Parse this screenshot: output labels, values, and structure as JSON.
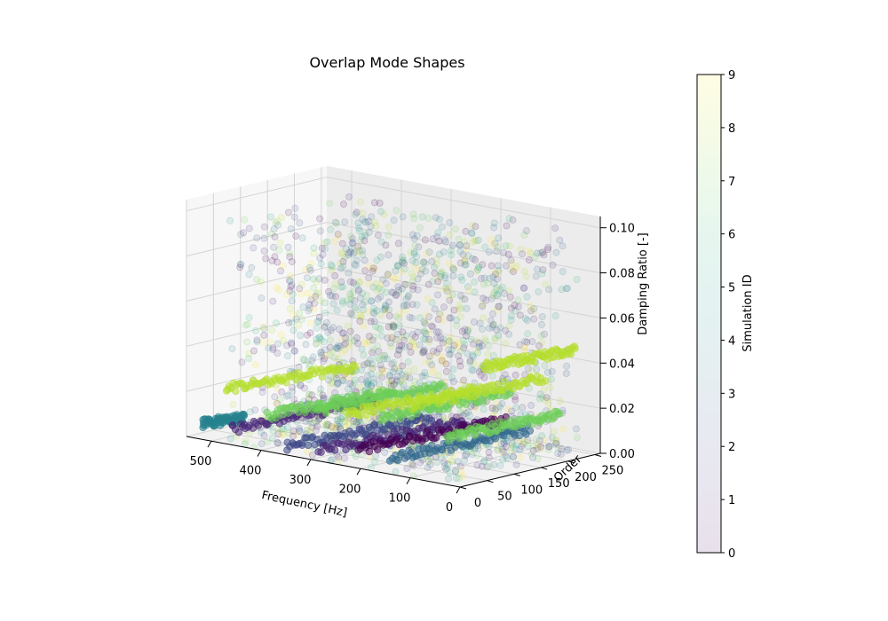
{
  "chart_data": {
    "type": "scatter",
    "projection": "3d",
    "title": "Overlap Mode Shapes",
    "xlabel": "Frequency [Hz]",
    "ylabel": "Order",
    "zlabel": "Damping Ratio [-]",
    "xlim": [
      0,
      550
    ],
    "ylim": [
      0,
      260
    ],
    "zlim": [
      0,
      0.105
    ],
    "x_ticks": [
      "0",
      "100",
      "200",
      "300",
      "400",
      "500"
    ],
    "y_ticks": [
      "0",
      "50",
      "100",
      "150",
      "200",
      "250"
    ],
    "z_ticks": [
      "0.00",
      "0.02",
      "0.04",
      "0.06",
      "0.08",
      "0.10"
    ],
    "x_tick_values": [
      0,
      100,
      200,
      300,
      400,
      500
    ],
    "y_tick_values": [
      0,
      50,
      100,
      150,
      200,
      250
    ],
    "z_tick_values": [
      0,
      0.02,
      0.04,
      0.06,
      0.08,
      0.1
    ],
    "grid": true,
    "colormap": "viridis",
    "colorbar": {
      "label": "Simulation ID",
      "min": 0,
      "max": 9,
      "ticks": [
        "0",
        "1",
        "2",
        "3",
        "4",
        "5",
        "6",
        "7",
        "8",
        "9"
      ],
      "tick_values": [
        0,
        1,
        2,
        3,
        4,
        5,
        6,
        7,
        8,
        9
      ],
      "colors": [
        "#440154",
        "#482878",
        "#3e4989",
        "#31688e",
        "#26828e",
        "#1f9e89",
        "#35b779",
        "#6ece58",
        "#b5de2b",
        "#fde725"
      ]
    },
    "marker_alpha": 0.12,
    "stable_tracks": [
      {
        "x0": 540,
        "x1": 520,
        "y0": 20,
        "y1": 80,
        "z": 0.005,
        "sim": 4
      },
      {
        "x0": 520,
        "x1": 470,
        "y0": 45,
        "y1": 240,
        "z": 0.02,
        "sim": 8
      },
      {
        "x0": 470,
        "x1": 440,
        "y0": 10,
        "y1": 250,
        "z": 0.006,
        "sim": 1
      },
      {
        "x0": 430,
        "x1": 400,
        "y0": 40,
        "y1": 245,
        "z": 0.012,
        "sim": 7
      },
      {
        "x0": 360,
        "x1": 330,
        "y0": 10,
        "y1": 250,
        "z": 0.003,
        "sim": 2
      },
      {
        "x0": 330,
        "x1": 300,
        "y0": 40,
        "y1": 245,
        "z": 0.018,
        "sim": 7
      },
      {
        "x0": 290,
        "x1": 260,
        "y0": 5,
        "y1": 250,
        "z": 0.004,
        "sim": 1
      },
      {
        "x0": 260,
        "x1": 230,
        "y0": 30,
        "y1": 245,
        "z": 0.02,
        "sim": 8
      },
      {
        "x0": 210,
        "x1": 180,
        "y0": 5,
        "y1": 250,
        "z": 0.008,
        "sim": 0
      },
      {
        "x0": 180,
        "x1": 160,
        "y0": 20,
        "y1": 240,
        "z": 0.022,
        "sim": 7
      },
      {
        "x0": 150,
        "x1": 130,
        "y0": 10,
        "y1": 250,
        "z": 0.006,
        "sim": 3
      },
      {
        "x0": 120,
        "x1": 100,
        "y0": 20,
        "y1": 250,
        "z": 0.03,
        "sim": 8
      },
      {
        "x0": 90,
        "x1": 70,
        "y0": 60,
        "y1": 250,
        "z": 0.015,
        "sim": 7
      },
      {
        "x0": 60,
        "x1": 40,
        "y0": 100,
        "y1": 250,
        "z": 0.045,
        "sim": 8
      }
    ],
    "scatter_cloud": {
      "x_range": [
        20,
        480
      ],
      "y_range": [
        0,
        255
      ],
      "z_range": [
        0,
        0.1
      ],
      "n_points": 1800
    }
  }
}
